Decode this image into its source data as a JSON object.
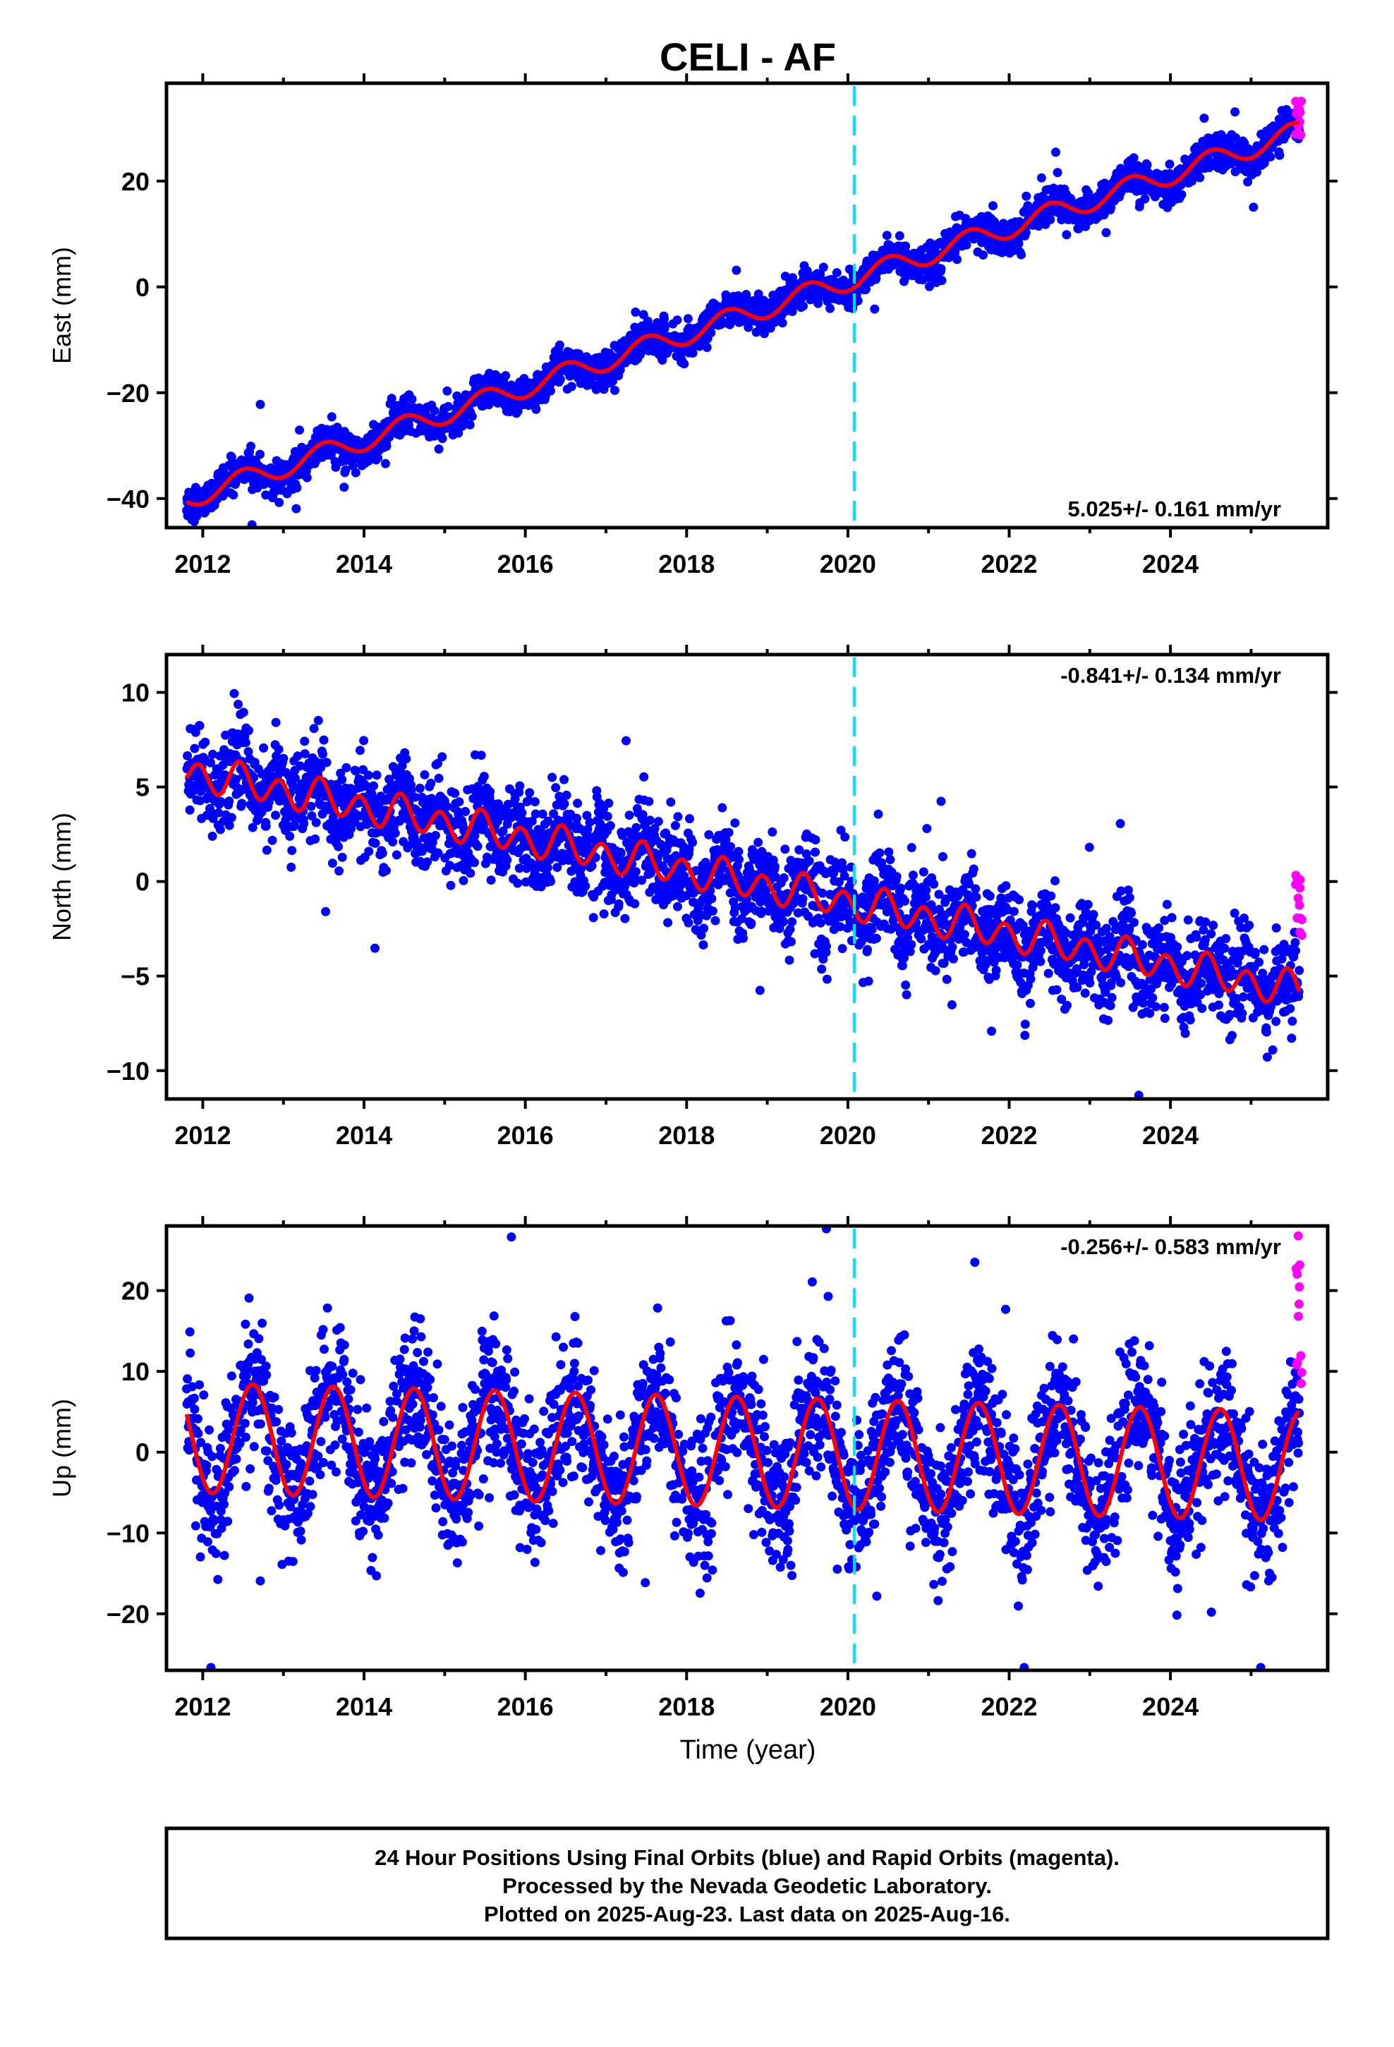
{
  "title": "CELI - AF",
  "xlabel": "Time (year)",
  "caption": [
    "24 Hour Positions Using Final Orbits (blue) and Rapid Orbits (magenta).",
    "Processed by the Nevada Geodetic Laboratory.",
    "Plotted on 2025-Aug-23. Last data on 2025-Aug-16."
  ],
  "colors": {
    "final_orbits": "#0000ff",
    "rapid_orbits": "#ff00ff",
    "model_fit": "#ff0000",
    "event_line": "#00e5ff"
  },
  "chart_data": [
    {
      "type": "scatter",
      "component": "east",
      "ylabel": "East (mm)",
      "rate_label": "5.025+/- 0.161 mm/yr",
      "xlim": [
        2011.55,
        2025.95
      ],
      "ylim": [
        -45.5,
        38.5
      ],
      "xticks": [
        "2012",
        "2014",
        "2016",
        "2018",
        "2020",
        "2022",
        "2024"
      ],
      "yticks": [
        "−40",
        "−20",
        "0",
        "20"
      ],
      "ytick_values": [
        -40,
        -20,
        0,
        20
      ],
      "event_line_x": 2020.08,
      "model": {
        "start_year": 2011.8,
        "end_year": 2025.6,
        "offset_mm": -40.0,
        "slope_mm_per_yr": 5.025,
        "annual_amp_mm": 2.0,
        "annual_peak_year_frac": 0.5,
        "scatter_mm": 1.6
      },
      "series": [
        {
          "name": "Final Orbits",
          "color": "#0000ff"
        },
        {
          "name": "Rapid Orbits",
          "color": "#ff00ff",
          "x_range": [
            2025.55,
            2025.63
          ],
          "y_range": [
            28.5,
            35.5
          ]
        },
        {
          "name": "Model fit",
          "color": "#ff0000"
        }
      ]
    },
    {
      "type": "scatter",
      "component": "north",
      "ylabel": "North (mm)",
      "rate_label": "-0.841+/- 0.134 mm/yr",
      "xlim": [
        2011.55,
        2025.95
      ],
      "ylim": [
        -11.5,
        12.0
      ],
      "xticks": [
        "2012",
        "2014",
        "2016",
        "2018",
        "2020",
        "2022",
        "2024"
      ],
      "yticks": [
        "−10",
        "−5",
        "0",
        "5",
        "10"
      ],
      "ytick_values": [
        -10,
        -5,
        0,
        5,
        10
      ],
      "event_line_x": 2020.08,
      "model": {
        "start_year": 2011.8,
        "end_year": 2025.6,
        "offset_mm": 5.8,
        "slope_mm_per_yr": -0.841,
        "semiannual_amp_mm": 0.8,
        "scatter_mm": 1.2
      },
      "series": [
        {
          "name": "Final Orbits",
          "color": "#0000ff"
        },
        {
          "name": "Rapid Orbits",
          "color": "#ff00ff",
          "x_range": [
            2025.55,
            2025.63
          ],
          "y_range": [
            -3.2,
            0.4
          ]
        },
        {
          "name": "Model fit",
          "color": "#ff0000"
        }
      ]
    },
    {
      "type": "scatter",
      "component": "up",
      "ylabel": "Up (mm)",
      "rate_label": "-0.256+/- 0.583 mm/yr",
      "xlim": [
        2011.55,
        2025.95
      ],
      "ylim": [
        -27.0,
        28.0
      ],
      "xticks": [
        "2012",
        "2014",
        "2016",
        "2018",
        "2020",
        "2022",
        "2024"
      ],
      "yticks": [
        "−20",
        "−10",
        "0",
        "10",
        "20"
      ],
      "ytick_values": [
        -20,
        -10,
        0,
        10,
        20
      ],
      "event_line_x": 2020.08,
      "model": {
        "start_year": 2011.8,
        "end_year": 2025.6,
        "offset_mm": 1.8,
        "slope_mm_per_yr": -0.256,
        "annual_amp_mm": 6.8,
        "annual_peak_year_frac": 0.62,
        "scatter_mm": 4.2
      },
      "series": [
        {
          "name": "Final Orbits",
          "color": "#0000ff"
        },
        {
          "name": "Rapid Orbits",
          "color": "#ff00ff",
          "x_range": [
            2025.55,
            2025.63
          ],
          "y_range": [
            8.0,
            27.5
          ]
        },
        {
          "name": "Model fit",
          "color": "#ff0000"
        }
      ]
    }
  ]
}
